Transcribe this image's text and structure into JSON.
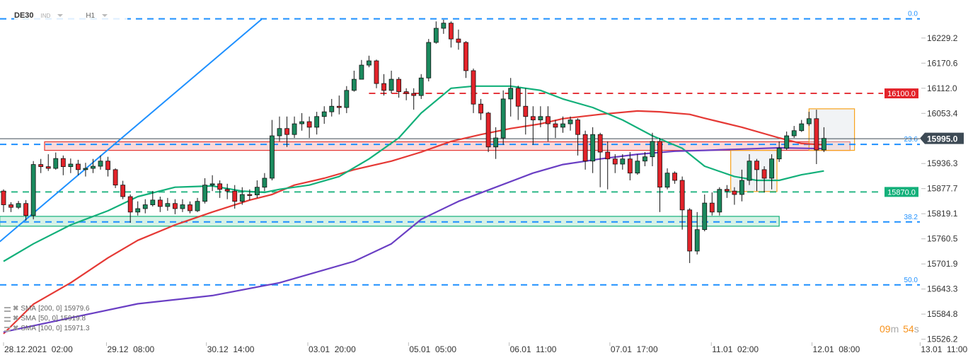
{
  "header": {
    "symbol": "DE30",
    "type": "IND",
    "timeframe": "H1"
  },
  "legend": [
    {
      "label": "SMA",
      "params": "[200,  0]",
      "value": "15979.6"
    },
    {
      "label": "SMA",
      "params": "[50,  0]",
      "value": "15919.8"
    },
    {
      "label": "SMA",
      "params": "[100,  0]",
      "value": "15971.3"
    }
  ],
  "timer": {
    "minutes": "09",
    "minutes_unit": "m",
    "seconds": "54",
    "seconds_unit": "s"
  },
  "colors": {
    "up": "#1b8a5e",
    "down": "#e3232a",
    "sma200": "#e53935",
    "sma50": "#13b07a",
    "sma100": "#6a3fc4",
    "fib": "#1e90ff",
    "trendline": "#1e90ff",
    "current_price": "#3d4a55",
    "zone_box": "#f7a21b"
  },
  "chart_data": {
    "type": "candlestick",
    "title": "",
    "ylim": [
      15514,
      16318
    ],
    "grid": false,
    "y_ticks": [
      "16229.2",
      "16170.6",
      "16112.0",
      "16053.4",
      "15936.3",
      "15877.7",
      "15819.1",
      "15760.5",
      "15701.9",
      "15643.3",
      "15584.8",
      "15526.2"
    ],
    "x_ticks": [
      {
        "index": 0,
        "label": "28.12.2021  02:00"
      },
      {
        "index": 13.8,
        "label": "29.12  08:00"
      },
      {
        "index": 27.2,
        "label": "30.12  14:00"
      },
      {
        "index": 40.8,
        "label": "03.01  20:00"
      },
      {
        "index": 54.3,
        "label": "05.01  05:00"
      },
      {
        "index": 67.8,
        "label": "06.01  11:00"
      },
      {
        "index": 81.3,
        "label": "07.01  17:00"
      },
      {
        "index": 94.9,
        "label": "11.01  02:00"
      },
      {
        "index": 108.4,
        "label": "12.01  08:00"
      },
      {
        "index": 122.9,
        "label": "13.01  11:00"
      }
    ],
    "candles_ohlc": [
      [
        15872,
        15876,
        15823,
        15840
      ],
      [
        15840,
        15846,
        15823,
        15834
      ],
      [
        15834,
        15849,
        15830,
        15843
      ],
      [
        15843,
        15851,
        15803,
        15815
      ],
      [
        15815,
        15942,
        15806,
        15934
      ],
      [
        15934,
        15947,
        15914,
        15929
      ],
      [
        15929,
        15958,
        15919,
        15925
      ],
      [
        15925,
        15962,
        15922,
        15948
      ],
      [
        15948,
        15955,
        15909,
        15929
      ],
      [
        15929,
        15948,
        15914,
        15935
      ],
      [
        15935,
        15945,
        15909,
        15922
      ],
      [
        15922,
        15938,
        15906,
        15925
      ],
      [
        15925,
        15947,
        15914,
        15930
      ],
      [
        15930,
        15955,
        15922,
        15942
      ],
      [
        15942,
        15952,
        15906,
        15922
      ],
      [
        15922,
        15925,
        15879,
        15886
      ],
      [
        15886,
        15896,
        15853,
        15859
      ],
      [
        15859,
        15864,
        15798,
        15823
      ],
      [
        15823,
        15848,
        15815,
        15831
      ],
      [
        15831,
        15853,
        15820,
        15840
      ],
      [
        15840,
        15872,
        15836,
        15851
      ],
      [
        15851,
        15859,
        15823,
        15836
      ],
      [
        15836,
        15856,
        15826,
        15843
      ],
      [
        15843,
        15853,
        15818,
        15831
      ],
      [
        15831,
        15853,
        15823,
        15840
      ],
      [
        15840,
        15848,
        15820,
        15826
      ],
      [
        15826,
        15856,
        15823,
        15848
      ],
      [
        15848,
        15902,
        15843,
        15886
      ],
      [
        15886,
        15909,
        15872,
        15889
      ],
      [
        15889,
        15897,
        15856,
        15876
      ],
      [
        15876,
        15889,
        15853,
        15872
      ],
      [
        15872,
        15886,
        15831,
        15848
      ],
      [
        15848,
        15881,
        15840,
        15864
      ],
      [
        15864,
        15876,
        15851,
        15863
      ],
      [
        15863,
        15897,
        15856,
        15881
      ],
      [
        15881,
        15914,
        15872,
        15902
      ],
      [
        15902,
        16038,
        15897,
        16001
      ],
      [
        16001,
        16046,
        15988,
        16018
      ],
      [
        16018,
        16046,
        15975,
        16004
      ],
      [
        16004,
        16046,
        15996,
        16029
      ],
      [
        16029,
        16054,
        16013,
        16034
      ],
      [
        16034,
        16046,
        15996,
        16021
      ],
      [
        16021,
        16057,
        16004,
        16046
      ],
      [
        16046,
        16070,
        16029,
        16057
      ],
      [
        16057,
        16087,
        16046,
        16070
      ],
      [
        16070,
        16095,
        16051,
        16067
      ],
      [
        16067,
        16117,
        16054,
        16107
      ],
      [
        16107,
        16153,
        16104,
        16133
      ],
      [
        16133,
        16178,
        16133,
        16166
      ],
      [
        16166,
        16188,
        16161,
        16176
      ],
      [
        16176,
        16179,
        16112,
        16123
      ],
      [
        16123,
        16145,
        16095,
        16107
      ],
      [
        16107,
        16153,
        16100,
        16133
      ],
      [
        16133,
        16138,
        16090,
        16104
      ],
      [
        16104,
        16112,
        16084,
        16100
      ],
      [
        16100,
        16112,
        16062,
        16095
      ],
      [
        16095,
        16145,
        16087,
        16136
      ],
      [
        16136,
        16227,
        16128,
        16219
      ],
      [
        16219,
        16268,
        16216,
        16252
      ],
      [
        16252,
        16272,
        16239,
        16264
      ],
      [
        16264,
        16268,
        16207,
        16227
      ],
      [
        16227,
        16249,
        16202,
        16219
      ],
      [
        16219,
        16222,
        16136,
        16153
      ],
      [
        16153,
        16158,
        16054,
        16075
      ],
      [
        16075,
        16087,
        16038,
        16054
      ],
      [
        16054,
        16057,
        15963,
        15975
      ],
      [
        15975,
        16021,
        15947,
        15996
      ],
      [
        15996,
        16107,
        15980,
        16087
      ],
      [
        16087,
        16136,
        16046,
        16112
      ],
      [
        16112,
        16118,
        16038,
        16070
      ],
      [
        16070,
        16112,
        16004,
        16046
      ],
      [
        16046,
        16070,
        15980,
        16038
      ],
      [
        16038,
        16070,
        16021,
        16046
      ],
      [
        16046,
        16070,
        15988,
        16029
      ],
      [
        16029,
        16038,
        15996,
        16021
      ],
      [
        16021,
        16046,
        16008,
        16029
      ],
      [
        16029,
        16046,
        16013,
        16038
      ],
      [
        16038,
        16042,
        15955,
        16004
      ],
      [
        16004,
        16013,
        15922,
        15942
      ],
      [
        15942,
        16021,
        15914,
        16004
      ],
      [
        16004,
        16008,
        15881,
        15963
      ],
      [
        15963,
        15988,
        15876,
        15947
      ],
      [
        15947,
        15958,
        15914,
        15935
      ],
      [
        15935,
        15958,
        15922,
        15947
      ],
      [
        15947,
        15963,
        15897,
        15914
      ],
      [
        15914,
        15958,
        15910,
        15942
      ],
      [
        15942,
        15963,
        15930,
        15952
      ],
      [
        15952,
        16008,
        15930,
        15988
      ],
      [
        15988,
        15996,
        15823,
        15881
      ],
      [
        15881,
        15925,
        15876,
        15914
      ],
      [
        15914,
        15918,
        15889,
        15897
      ],
      [
        15897,
        15906,
        15782,
        15828
      ],
      [
        15828,
        15832,
        15704,
        15732
      ],
      [
        15732,
        15823,
        15724,
        15782
      ],
      [
        15782,
        15864,
        15778,
        15844
      ],
      [
        15844,
        15869,
        15815,
        15823
      ],
      [
        15823,
        15881,
        15815,
        15876
      ],
      [
        15876,
        15886,
        15856,
        15872
      ],
      [
        15872,
        15881,
        15840,
        15864
      ],
      [
        15864,
        15922,
        15848,
        15897
      ],
      [
        15897,
        15958,
        15886,
        15942
      ],
      [
        15942,
        15947,
        15872,
        15922
      ],
      [
        15922,
        15930,
        15869,
        15902
      ],
      [
        15902,
        15958,
        15876,
        15947
      ],
      [
        15947,
        15988,
        15940,
        15972
      ],
      [
        15972,
        16011,
        15968,
        16001
      ],
      [
        16001,
        16024,
        15996,
        16013
      ],
      [
        16013,
        16038,
        16010,
        16029
      ],
      [
        16029,
        16057,
        16024,
        16041
      ],
      [
        16041,
        16062,
        15935,
        15968
      ],
      [
        15968,
        16021,
        15963,
        15995
      ]
    ],
    "series": [
      {
        "name": "SMA [200, 0]",
        "color_key": "sma200",
        "points": [
          [
            0,
            15539
          ],
          [
            4,
            15608
          ],
          [
            9,
            15658
          ],
          [
            14,
            15716
          ],
          [
            18,
            15757
          ],
          [
            23,
            15793
          ],
          [
            28,
            15823
          ],
          [
            33,
            15851
          ],
          [
            36,
            15864
          ],
          [
            39,
            15886
          ],
          [
            43,
            15902
          ],
          [
            47,
            15922
          ],
          [
            52,
            15942
          ],
          [
            56,
            15963
          ],
          [
            60,
            15988
          ],
          [
            64,
            16004
          ],
          [
            68,
            16018
          ],
          [
            72,
            16029
          ],
          [
            75,
            16041
          ],
          [
            80,
            16051
          ],
          [
            85,
            16059
          ],
          [
            88,
            16057
          ],
          [
            92,
            16051
          ],
          [
            94,
            16042
          ],
          [
            99,
            16021
          ],
          [
            104,
            15996
          ],
          [
            107,
            15983
          ],
          [
            110,
            15980
          ]
        ]
      },
      {
        "name": "SMA [50, 0]",
        "color_key": "sma50",
        "points": [
          [
            0,
            15708
          ],
          [
            4,
            15749
          ],
          [
            9,
            15793
          ],
          [
            14,
            15826
          ],
          [
            18,
            15859
          ],
          [
            23,
            15881
          ],
          [
            28,
            15884
          ],
          [
            32,
            15872
          ],
          [
            35,
            15869
          ],
          [
            37,
            15876
          ],
          [
            41,
            15886
          ],
          [
            45,
            15906
          ],
          [
            49,
            15947
          ],
          [
            53,
            15996
          ],
          [
            56,
            16054
          ],
          [
            60,
            16112
          ],
          [
            63,
            16117
          ],
          [
            68,
            16117
          ],
          [
            72,
            16107
          ],
          [
            75,
            16087
          ],
          [
            79,
            16067
          ],
          [
            83,
            16038
          ],
          [
            87,
            16001
          ],
          [
            91,
            15972
          ],
          [
            94,
            15930
          ],
          [
            98,
            15906
          ],
          [
            101,
            15897
          ],
          [
            104,
            15897
          ],
          [
            107,
            15910
          ],
          [
            110,
            15919
          ]
        ]
      },
      {
        "name": "SMA [100, 0]",
        "color_key": "sma100",
        "points": [
          [
            0,
            15543
          ],
          [
            9,
            15576
          ],
          [
            18,
            15609
          ],
          [
            28,
            15628
          ],
          [
            37,
            15658
          ],
          [
            47,
            15708
          ],
          [
            52,
            15749
          ],
          [
            56,
            15806
          ],
          [
            61,
            15848
          ],
          [
            66,
            15881
          ],
          [
            71,
            15914
          ],
          [
            75,
            15934
          ],
          [
            80,
            15947
          ],
          [
            85,
            15958
          ],
          [
            90,
            15965
          ],
          [
            94,
            15967
          ],
          [
            99,
            15970
          ],
          [
            104,
            15973
          ],
          [
            110,
            15971
          ]
        ]
      }
    ],
    "trendline": [
      [
        -0.5,
        15754
      ],
      [
        34.6,
        16273
      ]
    ],
    "fibonacci": [
      {
        "label": "0.0",
        "price": 16274
      },
      {
        "label": "23.6",
        "price": 15981
      },
      {
        "label": "38.2",
        "price": 15800
      },
      {
        "label": "50.0",
        "price": 15653
      }
    ],
    "horizontal_levels": [
      {
        "label": "16100.0",
        "price": 16100,
        "color_key": "down",
        "from_index": 49
      },
      {
        "label": "15870.0",
        "price": 15870,
        "color_key": "sma50",
        "from_index": -1
      }
    ],
    "current_price": {
      "label": "15995.0",
      "price": 15995
    },
    "zones": [
      {
        "kind": "resistance",
        "from_price": 15967,
        "to_price": 15987,
        "from_index": 5.5,
        "to_index": 113.5,
        "fill": "#fadadb",
        "stroke": "#e53935"
      },
      {
        "kind": "support",
        "from_price": 15790,
        "to_price": 15813,
        "from_index": -0.5,
        "to_index": 104,
        "fill": "#d6f2e6",
        "stroke": "#13b07a"
      }
    ],
    "boxes": [
      {
        "from_price": 15871,
        "to_price": 15967,
        "from_index": 97.5,
        "to_index": 103.7
      },
      {
        "from_price": 15967,
        "to_price": 16064,
        "from_index": 108,
        "to_index": 114.1
      }
    ]
  }
}
